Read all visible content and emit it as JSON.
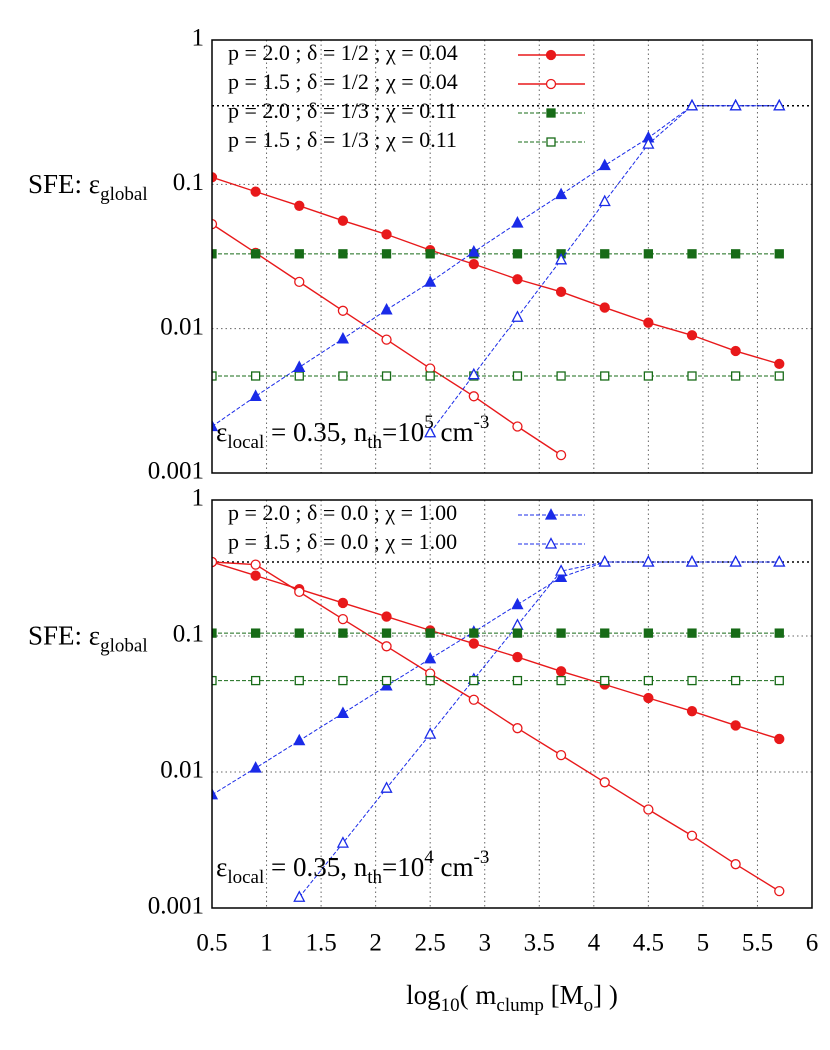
{
  "chart_data": [
    {
      "type": "line",
      "ylabel": [
        "SFE: ε",
        "global"
      ],
      "annotation": [
        "ε",
        "local",
        " = 0.35, n",
        "th",
        "=10",
        "5",
        " cm",
        "-3"
      ],
      "xlim": [
        0.5,
        6
      ],
      "xticks": [
        0.5,
        1,
        1.5,
        2,
        2.5,
        3,
        3.5,
        4,
        4.5,
        5,
        5.5,
        6
      ],
      "ylim": [
        0.001,
        1
      ],
      "yticks": [
        0.001,
        0.01,
        0.1,
        1
      ],
      "log_y": true,
      "grid": true,
      "hline": 0.35,
      "x": [
        0.5,
        0.9,
        1.3,
        1.7,
        2.1,
        2.5,
        2.9,
        3.3,
        3.7,
        4.1,
        4.5,
        4.9,
        5.3,
        5.7
      ],
      "series": [
        {
          "name": "p = 2.0 ; δ = 1/2 ; χ = 0.04",
          "color": "#e8191b",
          "marker": "circle",
          "filled": true,
          "dashed": false,
          "values": [
            0.112,
            0.089,
            0.071,
            0.056,
            0.045,
            0.035,
            0.028,
            0.022,
            0.018,
            0.014,
            0.011,
            0.009,
            0.007,
            0.0057
          ]
        },
        {
          "name": "p = 1.5 ; δ = 1/2 ; χ = 0.04",
          "color": "#e8191b",
          "marker": "circle",
          "filled": false,
          "dashed": false,
          "values": [
            0.053,
            0.0335,
            0.0211,
            0.0133,
            0.0084,
            0.0053,
            0.0034,
            0.0021,
            0.00133,
            null,
            null,
            null,
            null,
            null
          ]
        },
        {
          "name": "p = 2.0 ; δ = 1/3 ; χ = 0.11",
          "color": "#176b17",
          "marker": "square",
          "filled": true,
          "dashed": true,
          "values": [
            0.033,
            0.033,
            0.033,
            0.033,
            0.033,
            0.033,
            0.033,
            0.033,
            0.033,
            0.033,
            0.033,
            0.033,
            0.033,
            0.033
          ]
        },
        {
          "name": "p = 1.5 ; δ = 1/3 ; χ = 0.11",
          "color": "#176b17",
          "marker": "square",
          "filled": false,
          "dashed": true,
          "values": [
            0.0047,
            0.0047,
            0.0047,
            0.0047,
            0.0047,
            0.0047,
            0.0047,
            0.0047,
            0.0047,
            0.0047,
            0.0047,
            0.0047,
            0.0047,
            0.0047
          ]
        },
        {
          "color": "#1a2be8",
          "marker": "triangle",
          "filled": true,
          "dashed": true,
          "values": [
            0.0021,
            0.0034,
            0.0054,
            0.0085,
            0.0135,
            0.021,
            0.034,
            0.054,
            0.085,
            0.135,
            0.21,
            0.35,
            0.35,
            0.35
          ]
        },
        {
          "color": "#1a2be8",
          "marker": "triangle",
          "filled": false,
          "dashed": true,
          "values": [
            null,
            null,
            null,
            null,
            null,
            0.0019,
            0.0048,
            0.012,
            0.03,
            0.076,
            0.19,
            0.35,
            0.35,
            0.35
          ]
        }
      ]
    },
    {
      "type": "line",
      "ylabel": [
        "SFE: ε",
        "global"
      ],
      "annotation": [
        "ε",
        "local",
        " = 0.35, n",
        "th",
        "=10",
        "4",
        " cm",
        "-3"
      ],
      "xlabel": [
        "log",
        "10",
        "( m",
        "clump",
        " [M",
        "o",
        "] )"
      ],
      "xlim": [
        0.5,
        6
      ],
      "xticks": [
        0.5,
        1,
        1.5,
        2,
        2.5,
        3,
        3.5,
        4,
        4.5,
        5,
        5.5,
        6
      ],
      "ylim": [
        0.001,
        1
      ],
      "yticks": [
        0.001,
        0.01,
        0.1,
        1
      ],
      "log_y": true,
      "grid": true,
      "hline": 0.35,
      "x": [
        0.5,
        0.9,
        1.3,
        1.7,
        2.1,
        2.5,
        2.9,
        3.3,
        3.7,
        4.1,
        4.5,
        4.9,
        5.3,
        5.7
      ],
      "series": [
        {
          "name": "p = 2.0 ; δ = 0.0 ; χ = 1.00",
          "color": "#1a2be8",
          "marker": "triangle",
          "filled": true,
          "dashed": true,
          "values": [
            0.0068,
            0.0107,
            0.017,
            0.027,
            0.043,
            0.068,
            0.107,
            0.17,
            0.27,
            0.35,
            0.35,
            0.35,
            0.35,
            0.35
          ]
        },
        {
          "name": "p = 1.5 ; δ = 0.0 ; χ = 1.00",
          "color": "#1a2be8",
          "marker": "triangle",
          "filled": false,
          "dashed": true,
          "values": [
            null,
            null,
            0.0012,
            0.003,
            0.0076,
            0.019,
            0.048,
            0.12,
            0.3,
            0.35,
            0.35,
            0.35,
            0.35,
            0.35
          ]
        },
        {
          "color": "#e8191b",
          "marker": "circle",
          "filled": true,
          "dashed": false,
          "values": [
            0.35,
            0.278,
            0.221,
            0.175,
            0.139,
            0.11,
            0.088,
            0.07,
            0.055,
            0.044,
            0.035,
            0.028,
            0.022,
            0.0175
          ]
        },
        {
          "color": "#e8191b",
          "marker": "circle",
          "filled": false,
          "dashed": false,
          "values": [
            0.35,
            0.335,
            0.211,
            0.133,
            0.084,
            0.053,
            0.034,
            0.021,
            0.0133,
            0.0084,
            0.0053,
            0.0034,
            0.0021,
            0.00133
          ]
        },
        {
          "color": "#176b17",
          "marker": "square",
          "filled": true,
          "dashed": true,
          "values": [
            0.105,
            0.105,
            0.105,
            0.105,
            0.105,
            0.105,
            0.105,
            0.105,
            0.105,
            0.105,
            0.105,
            0.105,
            0.105,
            0.105
          ]
        },
        {
          "color": "#176b17",
          "marker": "square",
          "filled": false,
          "dashed": true,
          "values": [
            0.047,
            0.047,
            0.047,
            0.047,
            0.047,
            0.047,
            0.047,
            0.047,
            0.047,
            0.047,
            0.047,
            0.047,
            0.047,
            0.047
          ]
        }
      ]
    }
  ]
}
